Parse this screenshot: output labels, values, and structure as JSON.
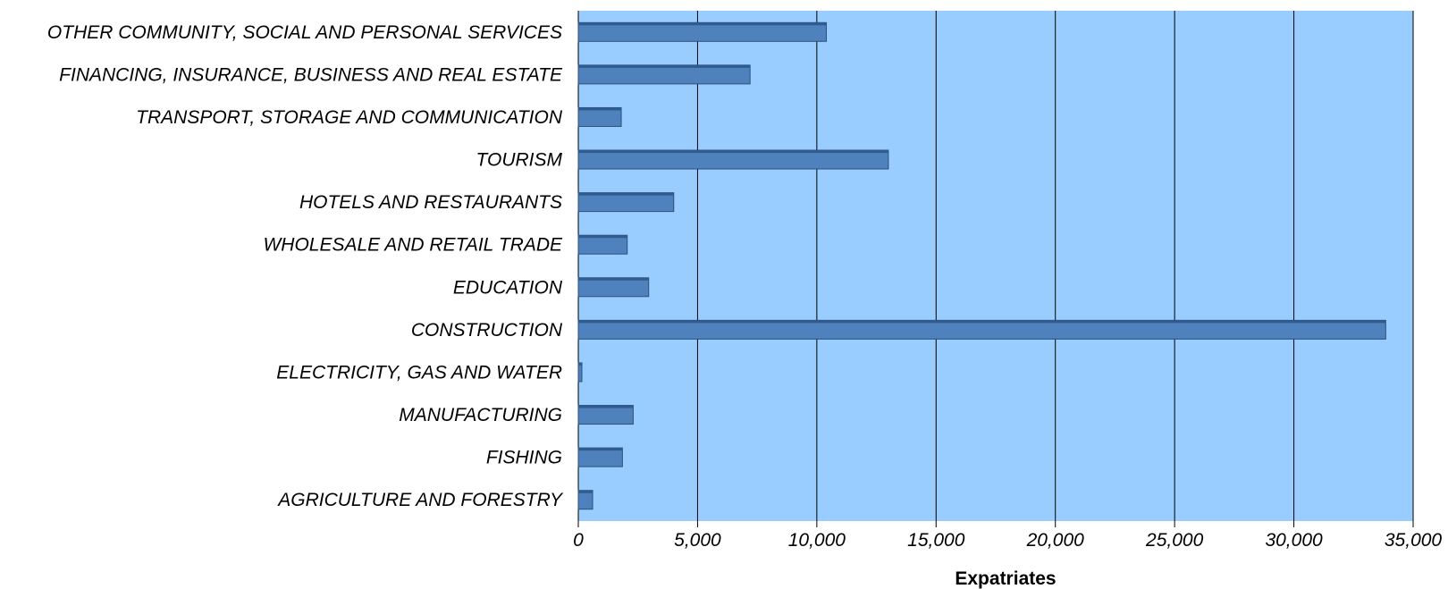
{
  "chart_data": {
    "type": "bar",
    "orientation": "horizontal",
    "categories": [
      "OTHER COMMUNITY, SOCIAL AND PERSONAL SERVICES",
      "FINANCING, INSURANCE, BUSINESS AND REAL ESTATE",
      "TRANSPORT, STORAGE AND COMMUNICATION",
      "TOURISM",
      "HOTELS AND RESTAURANTS",
      "WHOLESALE AND RETAIL TRADE",
      "EDUCATION",
      "CONSTRUCTION",
      "ELECTRICITY, GAS AND WATER",
      "MANUFACTURING",
      "FISHING",
      "AGRICULTURE AND FORESTRY"
    ],
    "values": [
      10400,
      7200,
      1800,
      13000,
      4000,
      2050,
      2950,
      33850,
      150,
      2300,
      1850,
      600
    ],
    "xlabel": "Expatriates",
    "ylabel": "",
    "xlim": [
      0,
      35000
    ],
    "xticks": [
      "0",
      "5,000",
      "10,000",
      "15,000",
      "20,000",
      "25,000",
      "30,000",
      "35,000"
    ],
    "grid": "vertical",
    "legend": "none",
    "colors": {
      "plot_background": "#99ccff",
      "bar_fill": "#4f81bd",
      "bar_top": "#2f5c8f",
      "bar_border": "#2e4f7a",
      "gridline": "#000000"
    }
  }
}
